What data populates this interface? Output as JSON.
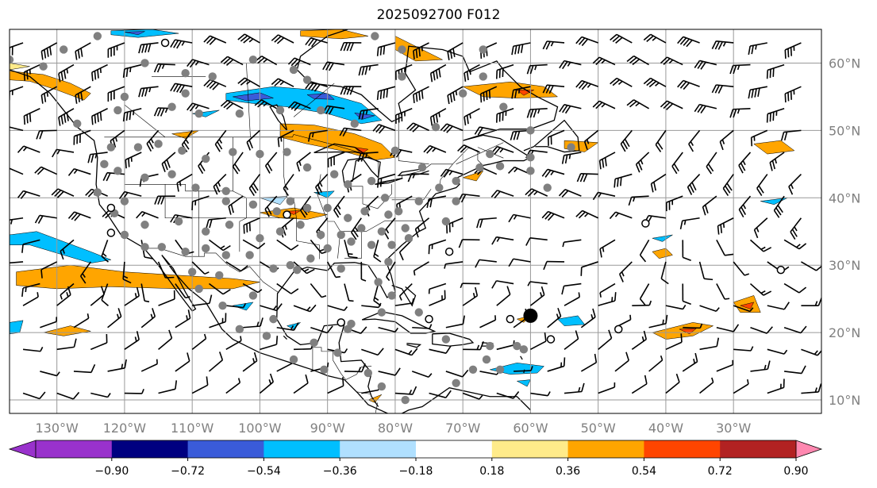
{
  "title": "2025092700 F012",
  "map": {
    "lon_range": [
      -137,
      -17
    ],
    "lat_range": [
      8,
      65
    ],
    "longitude_labels": [
      "130°W",
      "120°W",
      "110°W",
      "100°W",
      "90°W",
      "80°W",
      "70°W",
      "60°W",
      "50°W",
      "40°W",
      "30°W"
    ],
    "longitude_values": [
      -130,
      -120,
      -110,
      -100,
      -90,
      -80,
      -70,
      -60,
      -50,
      -40,
      -30
    ],
    "latitude_labels": [
      "60°N",
      "50°N",
      "40°N",
      "30°N",
      "20°N",
      "10°N"
    ],
    "latitude_values": [
      60,
      50,
      40,
      30,
      20,
      10
    ],
    "gridlines": true,
    "highlight_station": {
      "lon": -60,
      "lat": 22.5
    }
  },
  "colorbar": {
    "tick_labels": [
      "−0.90",
      "−0.72",
      "−0.54",
      "−0.36",
      "−0.18",
      "0.18",
      "0.36",
      "0.54",
      "0.72",
      "0.90"
    ],
    "bounds": [
      -0.9,
      -0.72,
      -0.54,
      -0.36,
      -0.18,
      0.18,
      0.36,
      0.54,
      0.72,
      0.9
    ],
    "colors": [
      "#000080",
      "#3a5bd9",
      "#00bfff",
      "#b0e0ff",
      "#ffffff",
      "#ffeb8a",
      "#ffa500",
      "#ff4500",
      "#b22222",
      "#ff88b0"
    ],
    "under_color": "#9932cc",
    "over_color": "#ff88b0",
    "extend": "both"
  }
}
